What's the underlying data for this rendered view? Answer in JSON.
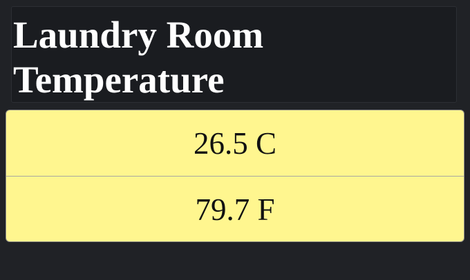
{
  "header": {
    "title": "Laundry Room\nTemperature"
  },
  "readings": {
    "celsius": "26.5 C",
    "fahrenheit": "79.7 F"
  },
  "colors": {
    "background": "#202226",
    "card": "#fff68f",
    "title_text": "#ffffff"
  }
}
